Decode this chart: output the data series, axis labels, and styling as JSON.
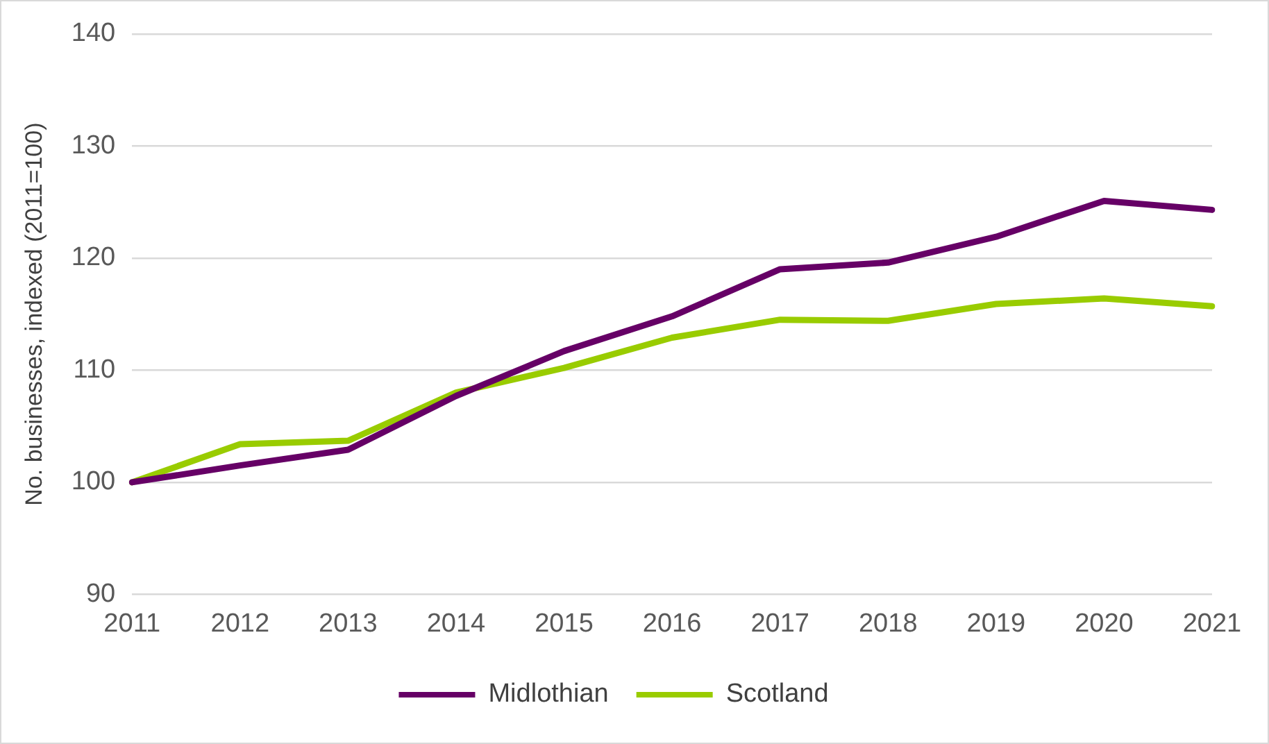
{
  "chart_data": {
    "type": "line",
    "ylabel": "No. businesses, indexed (2011=100)",
    "categories": [
      "2011",
      "2012",
      "2013",
      "2014",
      "2015",
      "2016",
      "2017",
      "2018",
      "2019",
      "2020",
      "2021"
    ],
    "series": [
      {
        "name": "Midlothian",
        "color": "#660066",
        "values": [
          100,
          101.5,
          102.9,
          107.7,
          111.7,
          114.8,
          119.0,
          119.6,
          121.9,
          125.1,
          124.3
        ]
      },
      {
        "name": "Scotland",
        "color": "#99cc00",
        "values": [
          100,
          103.4,
          103.7,
          108.0,
          110.2,
          112.9,
          114.5,
          114.4,
          115.9,
          116.4,
          115.7
        ]
      }
    ],
    "ylim": [
      90,
      140
    ],
    "yticks": [
      90,
      100,
      110,
      120,
      130,
      140
    ],
    "grid": "y",
    "legend": "bottom",
    "marker": "none",
    "line_style": "solid"
  }
}
